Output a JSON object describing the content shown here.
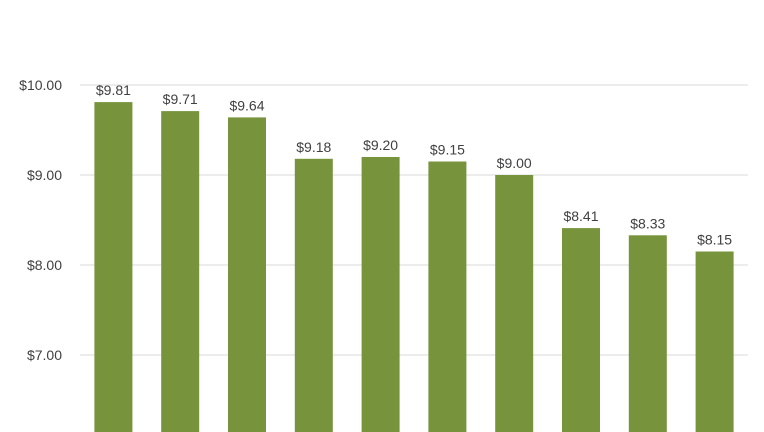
{
  "chart_data": {
    "type": "bar",
    "title": "",
    "xlabel": "",
    "ylabel": "",
    "categories": [
      "",
      "",
      "",
      "",
      "",
      "",
      "",
      "",
      "",
      ""
    ],
    "values": [
      9.81,
      9.71,
      9.64,
      9.18,
      9.2,
      9.15,
      9.0,
      8.41,
      8.33,
      8.15
    ],
    "data_labels": [
      "$9.81",
      "$9.71",
      "$9.64",
      "$9.18",
      "$9.20",
      "$9.15",
      "$9.00",
      "$8.41",
      "$8.33",
      "$8.15"
    ],
    "y_ticks": [
      {
        "value": 10.0,
        "label": "$10.00"
      },
      {
        "value": 9.0,
        "label": "$9.00"
      },
      {
        "value": 8.0,
        "label": "$8.00"
      },
      {
        "value": 7.0,
        "label": "$7.00"
      }
    ],
    "ylim": [
      6.0,
      11.0
    ],
    "grid": true,
    "legend": "none",
    "colors": {
      "bar": "#77933c",
      "grid": "#d9d9d9",
      "text": "#404040"
    }
  }
}
